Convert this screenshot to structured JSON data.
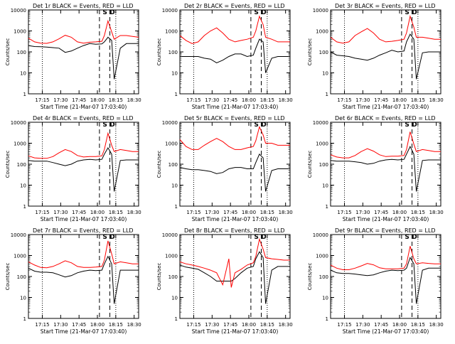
{
  "figure": {
    "ylabel": "Counts/sec",
    "xlabel": "Start Time (21-Mar-07 17:03:40)",
    "x_ticks": [
      "17:15",
      "17:30",
      "17:45",
      "18:00",
      "18:15",
      "18:30"
    ],
    "y_ticks": [
      "1",
      "10",
      "100",
      "1000",
      "10000"
    ],
    "markers": {
      "S": "S",
      "D": "D"
    },
    "colors": {
      "events": "#000000",
      "lld": "#ff0000"
    }
  },
  "panels": [
    {
      "title": "Det 1r BLACK = Events, RED = LLD"
    },
    {
      "title": "Det 2r BLACK = Events, RED = LLD"
    },
    {
      "title": "Det 3r BLACK = Events, RED = LLD"
    },
    {
      "title": "Det 4r BLACK = Events, RED = LLD"
    },
    {
      "title": "Det 5r BLACK = Events, RED = LLD"
    },
    {
      "title": "Det 6r BLACK = Events, RED = LLD"
    },
    {
      "title": "Det 7r BLACK = Events, RED = LLD"
    },
    {
      "title": "Det 8r BLACK = Events, RED = LLD"
    },
    {
      "title": "Det 9r BLACK = Events, RED = LLD"
    }
  ],
  "chart_data": [
    {
      "type": "line",
      "title": "Det 1r BLACK = Events, RED = LLD",
      "xlabel": "Start Time (21-Mar-07 17:03:40)",
      "ylabel": "Counts/sec",
      "ylim": [
        1,
        10000
      ],
      "y_scale": "log",
      "x": [
        0,
        5,
        10,
        15,
        20,
        25,
        30,
        35,
        40,
        45,
        50,
        55,
        60,
        62,
        65,
        68,
        70,
        75,
        80,
        85,
        90
      ],
      "series": [
        {
          "name": "Events",
          "color": "#000000",
          "values": [
            200,
            180,
            175,
            170,
            160,
            150,
            95,
            110,
            150,
            200,
            250,
            230,
            240,
            300,
            500,
            350,
            5,
            150,
            250,
            250,
            250
          ]
        },
        {
          "name": "LLD",
          "color": "#ff0000",
          "values": [
            450,
            300,
            260,
            255,
            300,
            420,
            620,
            500,
            300,
            260,
            290,
            300,
            320,
            600,
            3000,
            900,
            400,
            600,
            600,
            550,
            500
          ]
        }
      ]
    },
    {
      "type": "line",
      "title": "Det 2r BLACK = Events, RED = LLD",
      "xlabel": "Start Time (21-Mar-07 17:03:40)",
      "ylabel": "Counts/sec",
      "ylim": [
        1,
        10000
      ],
      "y_scale": "log",
      "x": [
        0,
        5,
        10,
        15,
        20,
        25,
        30,
        35,
        40,
        45,
        50,
        55,
        60,
        62,
        65,
        68,
        70,
        75,
        80,
        85,
        90
      ],
      "series": [
        {
          "name": "Events",
          "color": "#000000",
          "values": [
            60,
            60,
            60,
            60,
            50,
            45,
            30,
            40,
            60,
            80,
            80,
            60,
            70,
            150,
            400,
            300,
            10,
            50,
            60,
            60,
            60
          ]
        },
        {
          "name": "LLD",
          "color": "#ff0000",
          "values": [
            600,
            350,
            250,
            300,
            600,
            1000,
            1400,
            800,
            400,
            300,
            350,
            400,
            500,
            1000,
            5000,
            2000,
            500,
            400,
            300,
            300,
            300
          ]
        }
      ]
    },
    {
      "type": "line",
      "title": "Det 3r BLACK = Events, RED = LLD",
      "xlabel": "Start Time (21-Mar-07 17:03:40)",
      "ylabel": "Counts/sec",
      "ylim": [
        1,
        10000
      ],
      "y_scale": "log",
      "x": [
        0,
        5,
        10,
        15,
        20,
        25,
        30,
        35,
        40,
        45,
        50,
        55,
        60,
        62,
        65,
        68,
        70,
        75,
        80,
        85,
        90
      ],
      "series": [
        {
          "name": "Events",
          "color": "#000000",
          "values": [
            100,
            70,
            65,
            60,
            50,
            45,
            40,
            50,
            70,
            90,
            120,
            100,
            110,
            300,
            700,
            400,
            5,
            90,
            100,
            100,
            100
          ]
        },
        {
          "name": "LLD",
          "color": "#ff0000",
          "values": [
            500,
            300,
            260,
            300,
            600,
            900,
            1300,
            800,
            400,
            300,
            320,
            350,
            400,
            800,
            5000,
            1500,
            500,
            500,
            450,
            400,
            400
          ]
        }
      ]
    },
    {
      "type": "line",
      "title": "Det 4r BLACK = Events, RED = LLD",
      "xlabel": "Start Time (21-Mar-07 17:03:40)",
      "ylabel": "Counts/sec",
      "ylim": [
        1,
        10000
      ],
      "y_scale": "log",
      "x": [
        0,
        5,
        10,
        15,
        20,
        25,
        30,
        35,
        40,
        45,
        50,
        55,
        60,
        62,
        65,
        68,
        70,
        75,
        80,
        85,
        90
      ],
      "series": [
        {
          "name": "Events",
          "color": "#000000",
          "values": [
            150,
            140,
            140,
            140,
            120,
            100,
            85,
            100,
            140,
            160,
            170,
            160,
            170,
            300,
            600,
            300,
            5,
            150,
            160,
            160,
            160
          ]
        },
        {
          "name": "LLD",
          "color": "#ff0000",
          "values": [
            250,
            200,
            190,
            190,
            230,
            350,
            500,
            400,
            260,
            220,
            230,
            230,
            250,
            500,
            3000,
            800,
            400,
            500,
            450,
            400,
            400
          ]
        }
      ]
    },
    {
      "type": "line",
      "title": "Det 5r BLACK = Events, RED = LLD",
      "xlabel": "Start Time (21-Mar-07 17:03:40)",
      "ylabel": "Counts/sec",
      "ylim": [
        1,
        10000
      ],
      "y_scale": "log",
      "x": [
        0,
        5,
        10,
        15,
        20,
        25,
        30,
        35,
        40,
        45,
        50,
        55,
        60,
        62,
        65,
        68,
        70,
        75,
        80,
        85,
        90
      ],
      "series": [
        {
          "name": "Events",
          "color": "#000000",
          "values": [
            70,
            60,
            55,
            55,
            50,
            45,
            35,
            40,
            60,
            70,
            70,
            60,
            60,
            120,
            300,
            200,
            5,
            50,
            60,
            60,
            60
          ]
        },
        {
          "name": "LLD",
          "color": "#ff0000",
          "values": [
            1500,
            700,
            500,
            500,
            800,
            1200,
            1700,
            1200,
            700,
            500,
            500,
            600,
            700,
            1300,
            6000,
            2500,
            1000,
            1000,
            800,
            800,
            800
          ]
        }
      ]
    },
    {
      "type": "line",
      "title": "Det 6r BLACK = Events, RED = LLD",
      "xlabel": "Start Time (21-Mar-07 17:03:40)",
      "ylabel": "Counts/sec",
      "ylim": [
        1,
        10000
      ],
      "y_scale": "log",
      "x": [
        0,
        5,
        10,
        15,
        20,
        25,
        30,
        35,
        40,
        45,
        50,
        55,
        60,
        62,
        65,
        68,
        70,
        75,
        80,
        85,
        90
      ],
      "series": [
        {
          "name": "Events",
          "color": "#000000",
          "values": [
            150,
            140,
            140,
            140,
            130,
            120,
            100,
            110,
            140,
            160,
            170,
            160,
            170,
            300,
            700,
            300,
            5,
            150,
            160,
            160,
            160
          ]
        },
        {
          "name": "LLD",
          "color": "#ff0000",
          "values": [
            280,
            220,
            200,
            200,
            260,
            400,
            550,
            420,
            280,
            230,
            240,
            240,
            260,
            500,
            3500,
            900,
            400,
            500,
            450,
            400,
            400
          ]
        }
      ]
    },
    {
      "type": "line",
      "title": "Det 7r BLACK = Events, RED = LLD",
      "xlabel": "Start Time (21-Mar-07 17:03:40)",
      "ylabel": "Counts/sec",
      "ylim": [
        1,
        10000
      ],
      "y_scale": "log",
      "x": [
        0,
        5,
        10,
        15,
        20,
        25,
        30,
        35,
        40,
        45,
        50,
        55,
        60,
        62,
        65,
        68,
        70,
        75,
        80,
        85,
        90
      ],
      "series": [
        {
          "name": "Events",
          "color": "#000000",
          "values": [
            250,
            180,
            160,
            160,
            150,
            120,
            95,
            110,
            150,
            180,
            200,
            190,
            200,
            400,
            900,
            400,
            5,
            200,
            200,
            200,
            200
          ]
        },
        {
          "name": "LLD",
          "color": "#ff0000",
          "values": [
            500,
            350,
            270,
            260,
            300,
            400,
            560,
            450,
            300,
            270,
            270,
            280,
            300,
            600,
            5000,
            1200,
            400,
            500,
            450,
            400,
            400
          ]
        }
      ]
    },
    {
      "type": "line",
      "title": "Det 8r BLACK = Events, RED = LLD",
      "xlabel": "Start Time (21-Mar-07 17:03:40)",
      "ylabel": "Counts/sec",
      "ylim": [
        1,
        10000
      ],
      "y_scale": "log",
      "x": [
        0,
        5,
        10,
        15,
        20,
        25,
        30,
        35,
        40,
        42,
        45,
        50,
        55,
        60,
        62,
        65,
        68,
        70,
        75,
        80,
        85,
        90
      ],
      "series": [
        {
          "name": "Events",
          "color": "#000000",
          "values": [
            350,
            280,
            250,
            220,
            150,
            100,
            60,
            60,
            60,
            60,
            80,
            150,
            250,
            300,
            700,
            1500,
            800,
            5,
            200,
            300,
            300,
            300
          ]
        },
        {
          "name": "LLD",
          "color": "#ff0000",
          "values": [
            500,
            400,
            350,
            300,
            250,
            200,
            150,
            40,
            700,
            30,
            150,
            220,
            350,
            450,
            900,
            6000,
            2000,
            800,
            700,
            650,
            600,
            600
          ]
        }
      ]
    },
    {
      "type": "line",
      "title": "Det 9r BLACK = Events, RED = LLD",
      "xlabel": "Start Time (21-Mar-07 17:03:40)",
      "ylabel": "Counts/sec",
      "ylim": [
        1,
        10000
      ],
      "y_scale": "log",
      "x": [
        0,
        5,
        10,
        15,
        20,
        25,
        30,
        35,
        40,
        45,
        50,
        55,
        60,
        62,
        65,
        68,
        70,
        75,
        80,
        85,
        90
      ],
      "series": [
        {
          "name": "Events",
          "color": "#000000",
          "values": [
            200,
            150,
            140,
            140,
            130,
            120,
            110,
            120,
            150,
            180,
            200,
            190,
            200,
            250,
            800,
            400,
            5,
            200,
            250,
            250,
            250
          ]
        },
        {
          "name": "LLD",
          "color": "#ff0000",
          "values": [
            350,
            250,
            210,
            210,
            250,
            320,
            420,
            360,
            260,
            230,
            230,
            230,
            250,
            400,
            2800,
            700,
            400,
            450,
            420,
            400,
            400
          ]
        }
      ]
    }
  ]
}
